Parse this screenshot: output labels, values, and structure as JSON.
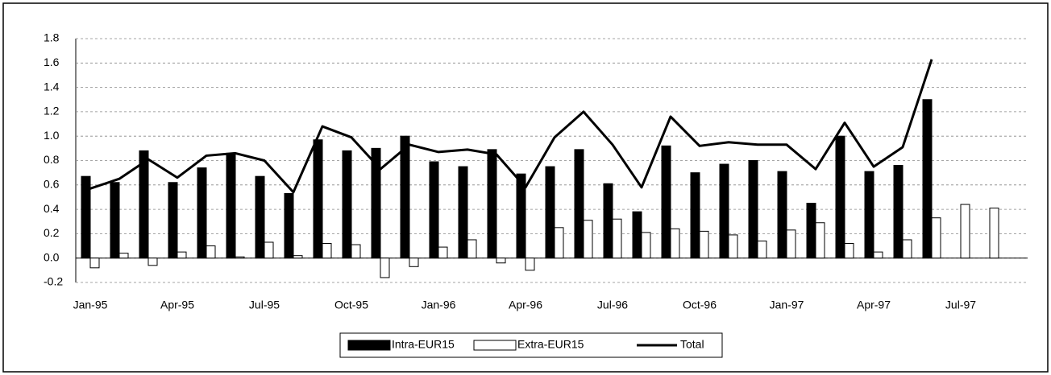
{
  "chart_data": {
    "type": "bar",
    "categories": [
      "Jan-95",
      null,
      null,
      "Apr-95",
      null,
      null,
      "Jul-95",
      null,
      null,
      "Oct-95",
      null,
      null,
      "Jan-96",
      null,
      null,
      "Apr-96",
      null,
      null,
      "Jul-96",
      null,
      null,
      "Oct-96",
      null,
      null,
      "Jan-97",
      null,
      null,
      "Apr-97",
      null,
      null,
      "Jul-97",
      null
    ],
    "series": [
      {
        "name": "Intra-EUR15",
        "type": "bar",
        "color": "#000000",
        "values": [
          0.67,
          0.62,
          0.88,
          0.62,
          0.74,
          0.86,
          0.67,
          0.53,
          0.97,
          0.88,
          0.9,
          1.0,
          0.79,
          0.75,
          0.89,
          0.69,
          0.75,
          0.89,
          0.61,
          0.38,
          0.92,
          0.7,
          0.77,
          0.8,
          0.71,
          0.45,
          1.0,
          0.71,
          0.76,
          1.3,
          null,
          null
        ]
      },
      {
        "name": "Extra-EUR15",
        "type": "bar",
        "color": "#ffffff",
        "values": [
          -0.08,
          0.04,
          -0.06,
          0.05,
          0.1,
          0.01,
          0.13,
          0.02,
          0.12,
          0.11,
          -0.16,
          -0.07,
          0.09,
          0.15,
          -0.04,
          -0.1,
          0.25,
          0.31,
          0.32,
          0.21,
          0.24,
          0.22,
          0.19,
          0.14,
          0.23,
          0.29,
          0.12,
          0.05,
          0.15,
          0.33,
          0.44,
          0.41
        ]
      },
      {
        "name": "Total",
        "type": "line",
        "color": "#000000",
        "values": [
          0.57,
          0.65,
          0.81,
          0.66,
          0.84,
          0.86,
          0.8,
          0.54,
          1.08,
          0.99,
          0.73,
          0.93,
          0.87,
          0.89,
          0.85,
          0.58,
          0.99,
          1.2,
          0.93,
          0.58,
          1.16,
          0.92,
          0.95,
          0.93,
          0.93,
          0.73,
          1.11,
          0.75,
          0.91,
          1.63,
          null,
          null
        ]
      }
    ],
    "ylim": [
      -0.2,
      1.8
    ],
    "yticks": [
      -0.2,
      {
        "value": 0,
        "label": "0.0"
      },
      0.2,
      0.4,
      0.6,
      0.8,
      {
        "value": 1,
        "label": "1.0"
      },
      1.2,
      1.4,
      1.6,
      1.8
    ],
    "grid": true,
    "legend": "bottom"
  }
}
